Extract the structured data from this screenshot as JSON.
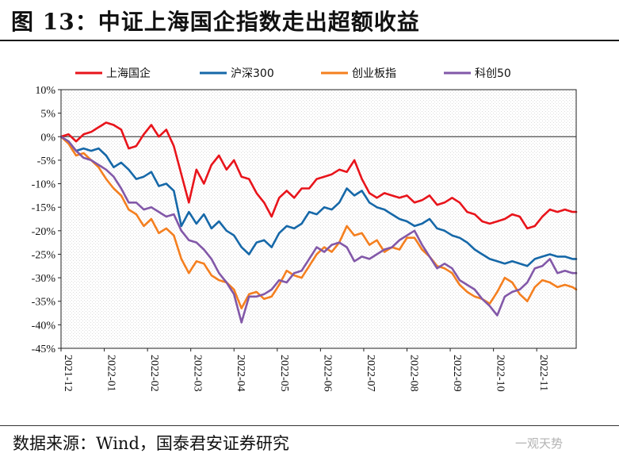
{
  "figure": {
    "title": "图 13：中证上海国企指数走出超额收益",
    "source": "数据来源：Wind，国泰君安证券研究",
    "watermark": "一观天势"
  },
  "chart_data": {
    "type": "line",
    "title": "",
    "xlabel": "",
    "ylabel": "",
    "ylim": [
      -45,
      10
    ],
    "y_ticks": [
      10,
      5,
      0,
      -5,
      -10,
      -15,
      -20,
      -25,
      -30,
      -35,
      -40,
      -45
    ],
    "y_tick_labels": [
      "10%",
      "5%",
      "0%",
      "-5%",
      "-10%",
      "-15%",
      "-20%",
      "-25%",
      "-30%",
      "-35%",
      "-40%",
      "-45%"
    ],
    "x_tick_labels": [
      "2021-12",
      "2022-01",
      "2022-02",
      "2022-03",
      "2022-04",
      "2022-05",
      "2022-06",
      "2022-07",
      "2022-08",
      "2022-09",
      "2022-10",
      "2022-11"
    ],
    "x_unit": "trading day index (0 = 2021-12-31, 11 = 2022-11-22)",
    "x_tick_positions": [
      0,
      11.5,
      23,
      34.5,
      46,
      57.5,
      69,
      80.5,
      92,
      103.5,
      115,
      126.5
    ],
    "xlim": [
      0,
      137
    ],
    "zero_line": true,
    "legend_position": "top",
    "series": [
      {
        "name": "上海国企",
        "color": "#e8141b",
        "x": [
          0,
          2,
          4,
          6,
          8,
          10,
          12,
          14,
          16,
          18,
          20,
          22,
          24,
          26,
          28,
          30,
          32,
          34,
          36,
          38,
          40,
          42,
          44,
          46,
          48,
          50,
          52,
          54,
          56,
          58,
          60,
          62,
          64,
          66,
          68,
          70,
          72,
          74,
          76,
          78,
          80,
          82,
          84,
          86,
          88,
          90,
          92,
          94,
          96,
          98,
          100,
          102,
          104,
          106,
          108,
          110,
          112,
          114,
          116,
          118,
          120,
          122,
          124,
          126,
          128,
          130,
          132,
          134,
          136,
          137
        ],
        "values": [
          0.0,
          0.5,
          -1.0,
          0.5,
          1.0,
          2.0,
          3.0,
          2.5,
          1.5,
          -2.5,
          -2.0,
          0.5,
          2.5,
          0.0,
          1.5,
          -2.0,
          -8.0,
          -14.0,
          -7.0,
          -10.0,
          -6.0,
          -4.0,
          -7.0,
          -5.0,
          -8.5,
          -9.0,
          -12.0,
          -14.0,
          -17.0,
          -13.0,
          -11.5,
          -13.0,
          -11.0,
          -11.0,
          -9.0,
          -8.5,
          -8.0,
          -7.0,
          -7.5,
          -5.0,
          -9.0,
          -12.0,
          -13.0,
          -12.0,
          -12.5,
          -13.0,
          -12.5,
          -14.0,
          -13.5,
          -12.5,
          -14.5,
          -14.0,
          -13.0,
          -14.0,
          -16.0,
          -16.5,
          -18.0,
          -18.5,
          -18.0,
          -17.5,
          -16.5,
          -17.0,
          -19.5,
          -19.0,
          -17.0,
          -15.5,
          -16.0,
          -15.5,
          -16.0,
          -16.0
        ]
      },
      {
        "name": "沪深300",
        "color": "#1668a8",
        "x": [
          0,
          2,
          4,
          6,
          8,
          10,
          12,
          14,
          16,
          18,
          20,
          22,
          24,
          26,
          28,
          30,
          32,
          34,
          36,
          38,
          40,
          42,
          44,
          46,
          48,
          50,
          52,
          54,
          56,
          58,
          60,
          62,
          64,
          66,
          68,
          70,
          72,
          74,
          76,
          78,
          80,
          82,
          84,
          86,
          88,
          90,
          92,
          94,
          96,
          98,
          100,
          102,
          104,
          106,
          108,
          110,
          112,
          114,
          116,
          118,
          120,
          122,
          124,
          126,
          128,
          130,
          132,
          134,
          136,
          137
        ],
        "values": [
          0.0,
          -1.0,
          -3.0,
          -2.5,
          -3.0,
          -2.5,
          -4.0,
          -6.5,
          -5.5,
          -7.0,
          -9.0,
          -8.5,
          -7.5,
          -10.5,
          -10.0,
          -11.5,
          -19.0,
          -16.0,
          -18.5,
          -16.5,
          -19.5,
          -18.0,
          -20.0,
          -21.0,
          -23.5,
          -25.0,
          -22.5,
          -22.0,
          -23.5,
          -20.5,
          -19.0,
          -19.5,
          -18.5,
          -16.0,
          -16.5,
          -15.0,
          -15.5,
          -14.0,
          -11.0,
          -12.5,
          -11.5,
          -14.0,
          -15.0,
          -15.5,
          -16.5,
          -17.5,
          -18.0,
          -19.0,
          -18.5,
          -17.5,
          -19.5,
          -20.0,
          -21.0,
          -21.5,
          -22.5,
          -24.0,
          -25.0,
          -26.0,
          -26.5,
          -27.0,
          -26.5,
          -27.0,
          -27.5,
          -26.0,
          -25.5,
          -25.0,
          -25.5,
          -25.5,
          -26.0,
          -26.0
        ]
      },
      {
        "name": "创业板指",
        "color": "#f47f1f",
        "x": [
          0,
          2,
          4,
          6,
          8,
          10,
          12,
          14,
          16,
          18,
          20,
          22,
          24,
          26,
          28,
          30,
          32,
          34,
          36,
          38,
          40,
          42,
          44,
          46,
          48,
          50,
          52,
          54,
          56,
          58,
          60,
          62,
          64,
          66,
          68,
          70,
          72,
          74,
          76,
          78,
          80,
          82,
          84,
          86,
          88,
          90,
          92,
          94,
          96,
          98,
          100,
          102,
          104,
          106,
          108,
          110,
          112,
          114,
          116,
          118,
          120,
          122,
          124,
          126,
          128,
          130,
          132,
          134,
          136,
          137
        ],
        "values": [
          0.0,
          -1.5,
          -4.0,
          -3.5,
          -5.0,
          -6.5,
          -9.0,
          -11.0,
          -12.5,
          -15.5,
          -16.5,
          -19.0,
          -17.5,
          -20.5,
          -19.5,
          -21.0,
          -26.0,
          -29.0,
          -26.5,
          -27.0,
          -29.5,
          -30.5,
          -31.0,
          -32.5,
          -36.5,
          -33.5,
          -33.0,
          -34.5,
          -34.0,
          -31.5,
          -28.5,
          -29.5,
          -30.0,
          -27.5,
          -25.0,
          -23.5,
          -24.5,
          -22.5,
          -19.0,
          -21.0,
          -20.5,
          -23.0,
          -22.0,
          -24.5,
          -23.5,
          -24.0,
          -21.5,
          -21.5,
          -24.0,
          -25.5,
          -27.5,
          -28.0,
          -29.0,
          -31.5,
          -33.0,
          -34.0,
          -34.5,
          -35.5,
          -33.0,
          -30.0,
          -31.0,
          -33.5,
          -35.0,
          -32.0,
          -30.5,
          -31.0,
          -32.0,
          -31.5,
          -32.0,
          -32.5
        ]
      },
      {
        "name": "科创50",
        "color": "#8258a8",
        "x": [
          0,
          2,
          4,
          6,
          8,
          10,
          12,
          14,
          16,
          18,
          20,
          22,
          24,
          26,
          28,
          30,
          32,
          34,
          36,
          38,
          40,
          42,
          44,
          46,
          48,
          50,
          52,
          54,
          56,
          58,
          60,
          62,
          64,
          66,
          68,
          70,
          72,
          74,
          76,
          78,
          80,
          82,
          84,
          86,
          88,
          90,
          92,
          94,
          96,
          98,
          100,
          102,
          104,
          106,
          108,
          110,
          112,
          114,
          116,
          118,
          120,
          122,
          124,
          126,
          128,
          130,
          132,
          134,
          136,
          137
        ],
        "values": [
          0.0,
          -1.0,
          -3.0,
          -4.5,
          -5.0,
          -6.0,
          -7.0,
          -8.5,
          -11.0,
          -14.0,
          -14.0,
          -15.5,
          -15.0,
          -16.0,
          -17.0,
          -16.5,
          -20.0,
          -22.0,
          -22.5,
          -24.0,
          -26.0,
          -29.0,
          -31.0,
          -33.5,
          -39.5,
          -34.0,
          -34.0,
          -33.5,
          -32.5,
          -30.5,
          -31.0,
          -29.0,
          -28.5,
          -26.0,
          -23.5,
          -24.5,
          -23.0,
          -22.5,
          -23.5,
          -26.5,
          -25.5,
          -26.0,
          -25.0,
          -24.0,
          -23.5,
          -22.0,
          -21.0,
          -20.0,
          -23.0,
          -25.5,
          -28.0,
          -27.0,
          -28.0,
          -30.5,
          -31.5,
          -32.5,
          -34.5,
          -36.0,
          -38.0,
          -34.0,
          -33.0,
          -32.5,
          -31.0,
          -28.0,
          -27.5,
          -26.0,
          -29.0,
          -28.5,
          -29.0,
          -29.0
        ]
      }
    ]
  }
}
